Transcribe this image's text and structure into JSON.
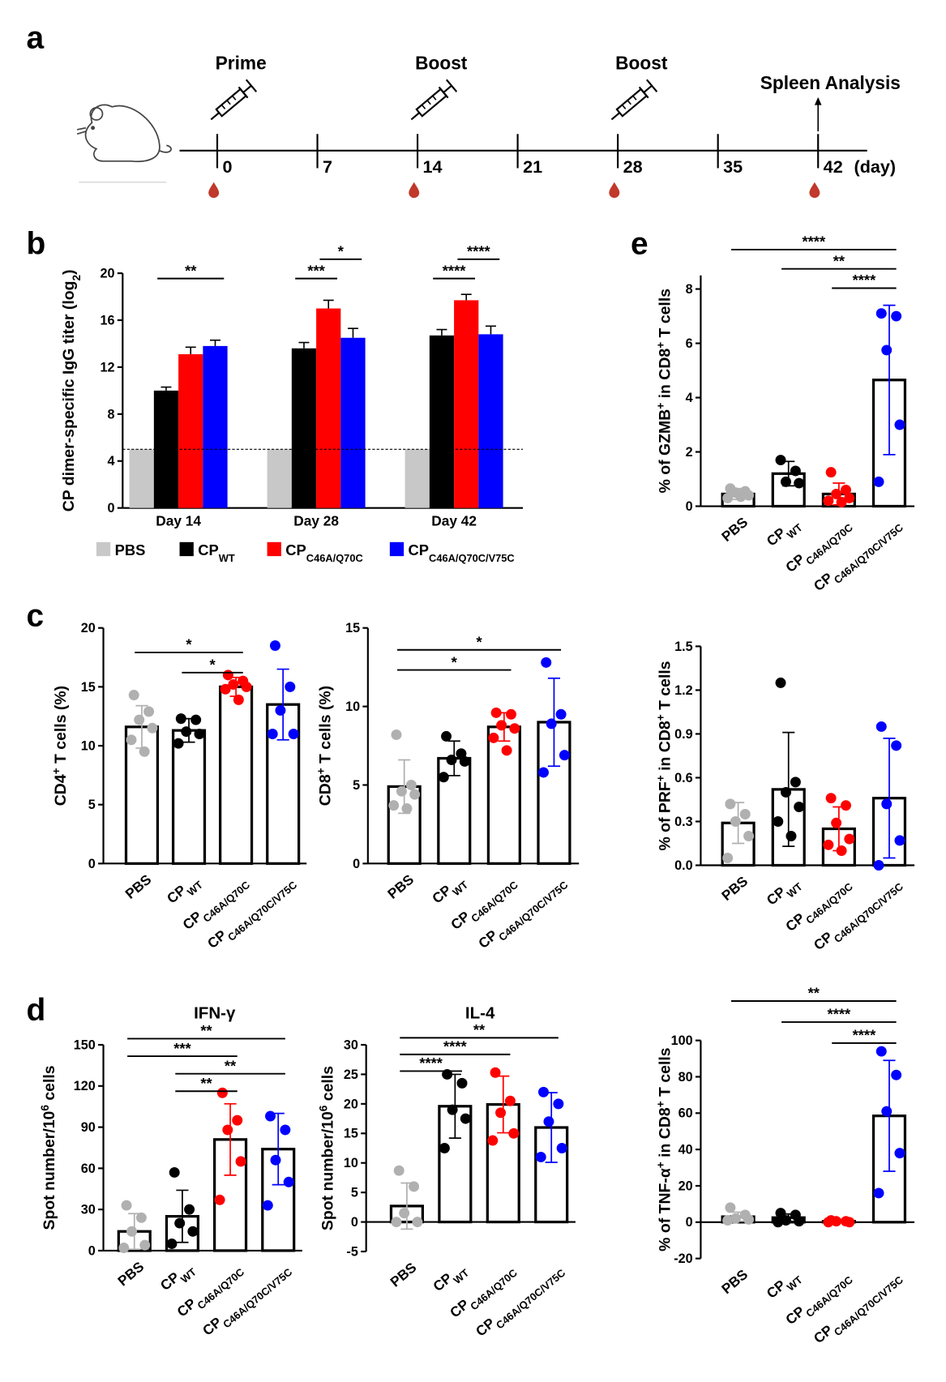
{
  "panel_labels": [
    "a",
    "b",
    "c",
    "d",
    "e"
  ],
  "timeline": {
    "days": [
      0,
      7,
      14,
      21,
      28,
      35,
      42
    ],
    "unit": "(day)",
    "events": [
      {
        "day": 0,
        "label": "Prime"
      },
      {
        "day": 14,
        "label": "Boost"
      },
      {
        "day": 28,
        "label": "Boost"
      },
      {
        "day": 42,
        "label": "Spleen Analysis"
      }
    ],
    "bleeds": [
      0,
      14,
      28,
      42
    ]
  },
  "chart_data": [
    {
      "type": "grouped_bar",
      "ylabel": [
        "CP dimer-specific IgG titer (log",
        {
          "sub": "2"
        },
        ")"
      ],
      "categories": [
        "Day 14",
        "Day 28",
        "Day 42"
      ],
      "ylim": [
        0,
        20
      ],
      "yticks": [
        0,
        4,
        8,
        12,
        16,
        20
      ],
      "threshold": 5,
      "series": [
        {
          "name": "PBS",
          "color": "#c8c8c8",
          "values": [
            5,
            5,
            5
          ]
        },
        {
          "name": "CP",
          "sub": "WT",
          "color": "#000000",
          "values": [
            10,
            13.6,
            14.7
          ],
          "errors": [
            0.3,
            0.5,
            0.5
          ]
        },
        {
          "name": "CP",
          "sub": "C46A/Q70C",
          "color": "#ff0000",
          "values": [
            13.1,
            17,
            17.7
          ],
          "errors": [
            0.6,
            0.7,
            0.5
          ]
        },
        {
          "name": "CP",
          "sub": "C46A/Q70C/V75C",
          "color": "#0000ff",
          "values": [
            13.8,
            14.5,
            14.8
          ],
          "errors": [
            0.5,
            0.8,
            0.7
          ]
        }
      ],
      "significance": [
        {
          "category": 0,
          "series": [
            1,
            3
          ],
          "label": "**"
        },
        {
          "category": 1,
          "series": [
            1,
            2
          ],
          "label": "***"
        },
        {
          "category": 1,
          "series": [
            2,
            3
          ],
          "label": "*"
        },
        {
          "category": 2,
          "series": [
            1,
            2
          ],
          "label": "****"
        },
        {
          "category": 2,
          "series": [
            2,
            3
          ],
          "label": "****"
        }
      ]
    },
    {
      "type": "dot_bar",
      "ylabel": [
        "CD4",
        {
          "sup": "+"
        },
        " T cells (%)"
      ],
      "ylim": [
        0,
        20
      ],
      "yticks": [
        0,
        5,
        10,
        15,
        20
      ],
      "categories": [
        {
          "text": "PBS"
        },
        {
          "text": "CP",
          "sub": "WT"
        },
        {
          "text": "CP",
          "sub": "C46A/Q70C"
        },
        {
          "text": "CP",
          "sub": "C46A/Q70C/V75C"
        }
      ],
      "colors": [
        "#b0b0b0",
        "#000000",
        "#ff0000",
        "#0000ff"
      ],
      "means": [
        11.6,
        11.3,
        15,
        13.5
      ],
      "sd": [
        1.8,
        1,
        0.8,
        3
      ],
      "points": [
        [
          14.3,
          12.9,
          12.2,
          11.5,
          10.5,
          9.5
        ],
        [
          12.3,
          12.2,
          11.2,
          11,
          10.2
        ],
        [
          16,
          15.5,
          15.2,
          15,
          14.8,
          13.9
        ],
        [
          18.5,
          15,
          13,
          11,
          11
        ]
      ],
      "significance": [
        {
          "groups": [
            0,
            2
          ],
          "label": "*"
        },
        {
          "groups": [
            1,
            2
          ],
          "label": "*"
        }
      ]
    },
    {
      "type": "dot_bar",
      "ylabel": [
        "CD8",
        {
          "sup": "+"
        },
        " T cells (%)"
      ],
      "ylim": [
        0,
        15
      ],
      "yticks": [
        0,
        5,
        10,
        15
      ],
      "categories": [
        {
          "text": "PBS"
        },
        {
          "text": "CP",
          "sub": "WT"
        },
        {
          "text": "CP",
          "sub": "C46A/Q70C"
        },
        {
          "text": "CP",
          "sub": "C46A/Q70C/V75C"
        }
      ],
      "colors": [
        "#b0b0b0",
        "#000000",
        "#ff0000",
        "#0000ff"
      ],
      "means": [
        4.9,
        6.7,
        8.7,
        9
      ],
      "sd": [
        1.7,
        1.1,
        0.9,
        2.8
      ],
      "points": [
        [
          8.2,
          5,
          4.6,
          4.4,
          3.7,
          3.5
        ],
        [
          8.1,
          7,
          6.6,
          6.5,
          5.5
        ],
        [
          9.6,
          9.5,
          8.8,
          8.6,
          8,
          7.2
        ],
        [
          12.8,
          9.5,
          8.9,
          6.9,
          5.8
        ]
      ],
      "significance": [
        {
          "groups": [
            0,
            3
          ],
          "label": "*"
        },
        {
          "groups": [
            0,
            2
          ],
          "label": "*"
        }
      ]
    },
    {
      "type": "dot_bar",
      "title": "IFN-γ",
      "ylabel": [
        "Spot number/10",
        {
          "sup": "6"
        },
        " cells"
      ],
      "ylim": [
        0,
        150
      ],
      "yticks": [
        0,
        30,
        60,
        90,
        120,
        150
      ],
      "categories": [
        {
          "text": "PBS"
        },
        {
          "text": "CP",
          "sub": "WT"
        },
        {
          "text": "CP",
          "sub": "C46A/Q70C"
        },
        {
          "text": "CP",
          "sub": "C46A/Q70C/V75C"
        }
      ],
      "colors": [
        "#b0b0b0",
        "#000000",
        "#ff0000",
        "#0000ff"
      ],
      "means": [
        14,
        25,
        81,
        74
      ],
      "sd": [
        13,
        19,
        26,
        26
      ],
      "points": [
        [
          33,
          24,
          14,
          4,
          2
        ],
        [
          57,
          30,
          20,
          14,
          5
        ],
        [
          115,
          95,
          88,
          65,
          37
        ],
        [
          98,
          88,
          66,
          50,
          33
        ]
      ],
      "significance": [
        {
          "groups": [
            0,
            3
          ],
          "label": "**"
        },
        {
          "groups": [
            0,
            2
          ],
          "label": "***"
        },
        {
          "groups": [
            1,
            3
          ],
          "label": "**"
        },
        {
          "groups": [
            1,
            2
          ],
          "label": "**"
        }
      ]
    },
    {
      "type": "dot_bar",
      "title": "IL-4",
      "ylabel": [
        "Spot number/10",
        {
          "sup": "6"
        },
        " cells"
      ],
      "ylim": [
        -5,
        30
      ],
      "yticks": [
        -5,
        0,
        5,
        10,
        15,
        20,
        25,
        30
      ],
      "categories": [
        {
          "text": "PBS"
        },
        {
          "text": "CP",
          "sub": "WT"
        },
        {
          "text": "CP",
          "sub": "C46A/Q70C"
        },
        {
          "text": "CP",
          "sub": "C46A/Q70C/V75C"
        }
      ],
      "colors": [
        "#b0b0b0",
        "#000000",
        "#ff0000",
        "#0000ff"
      ],
      "means": [
        2.7,
        19.6,
        19.9,
        16
      ],
      "sd": [
        3.9,
        5.4,
        4.8,
        5.9
      ],
      "points": [
        [
          8.7,
          6,
          1.5,
          0,
          0
        ],
        [
          25,
          23.5,
          19,
          17.5,
          12.5
        ],
        [
          25.3,
          20.5,
          18.5,
          15,
          13.8
        ],
        [
          22,
          20,
          17,
          12.5,
          11
        ]
      ],
      "significance": [
        {
          "groups": [
            0,
            3
          ],
          "label": "**"
        },
        {
          "groups": [
            0,
            2
          ],
          "label": "****"
        },
        {
          "groups": [
            0,
            1
          ],
          "label": "****"
        }
      ]
    },
    {
      "type": "dot_bar",
      "ylabel": [
        "% of GZMB",
        {
          "sup": "+"
        },
        " in CD8",
        {
          "sup": "+"
        },
        " T cells"
      ],
      "ylim": [
        0,
        8.5
      ],
      "yticks": [
        0,
        2,
        4,
        6,
        8
      ],
      "categories": [
        {
          "text": "PBS"
        },
        {
          "text": "CP",
          "sub": "WT"
        },
        {
          "text": "CP",
          "sub": "C46A/Q70C"
        },
        {
          "text": "CP",
          "sub": "C46A/Q70C/V75C"
        }
      ],
      "colors": [
        "#b0b0b0",
        "#000000",
        "#ff0000",
        "#0000ff"
      ],
      "means": [
        0.45,
        1.2,
        0.45,
        4.65
      ],
      "sd": [
        0.2,
        0.45,
        0.4,
        2.75
      ],
      "points": [
        [
          0.65,
          0.55,
          0.5,
          0.4,
          0.3,
          0.35
        ],
        [
          1.7,
          1.3,
          0.9,
          0.85
        ],
        [
          1.25,
          0.6,
          0.45,
          0.3,
          0.2,
          0.15
        ],
        [
          7.1,
          7,
          5.75,
          3,
          0.9
        ]
      ],
      "significance": [
        {
          "groups": [
            0,
            3
          ],
          "label": "****"
        },
        {
          "groups": [
            1,
            3
          ],
          "label": "**"
        },
        {
          "groups": [
            2,
            3
          ],
          "label": "****"
        }
      ]
    },
    {
      "type": "dot_bar",
      "ylabel": [
        "% of PRF",
        {
          "sup": "+"
        },
        " in CD8",
        {
          "sup": "+"
        },
        " T cells"
      ],
      "ylim": [
        0,
        1.5
      ],
      "yticks": [
        {
          "value": 0,
          "label": "0.0"
        },
        0.3,
        0.6,
        0.9,
        1.2,
        1.5
      ],
      "categories": [
        {
          "text": "PBS"
        },
        {
          "text": "CP",
          "sub": "WT"
        },
        {
          "text": "CP",
          "sub": "C46A/Q70C"
        },
        {
          "text": "CP",
          "sub": "C46A/Q70C/V75C"
        }
      ],
      "colors": [
        "#b0b0b0",
        "#000000",
        "#ff0000",
        "#0000ff"
      ],
      "means": [
        0.29,
        0.52,
        0.25,
        0.46
      ],
      "sd": [
        0.14,
        0.39,
        0.15,
        0.41
      ],
      "points": [
        [
          0.42,
          0.35,
          0.3,
          0.2,
          0.05
        ],
        [
          1.25,
          0.57,
          0.5,
          0.4,
          0.3,
          0.2
        ],
        [
          0.46,
          0.41,
          0.29,
          0.18,
          0.14,
          0.1
        ],
        [
          0.95,
          0.82,
          0.42,
          0.17,
          0
        ]
      ]
    },
    {
      "type": "dot_bar",
      "ylabel": [
        "% of TNF-α",
        {
          "sup": "+"
        },
        " in CD8",
        {
          "sup": "+"
        },
        " T cells"
      ],
      "ylim": [
        -20,
        100
      ],
      "yticks": [
        -20,
        0,
        20,
        40,
        60,
        80,
        100
      ],
      "categories": [
        {
          "text": "PBS"
        },
        {
          "text": "CP",
          "sub": "WT"
        },
        {
          "text": "CP",
          "sub": "C46A/Q70C"
        },
        {
          "text": "CP",
          "sub": "C46A/Q70C/V75C"
        }
      ],
      "colors": [
        "#b0b0b0",
        "#000000",
        "#ff0000",
        "#0000ff"
      ],
      "means": [
        3,
        2.5,
        0.5,
        58.5
      ],
      "sd": [
        2.5,
        2,
        0.5,
        30.5
      ],
      "points": [
        [
          8,
          4,
          2,
          1.5,
          1
        ],
        [
          5,
          4,
          1,
          0.5,
          0
        ],
        [
          1,
          0.5,
          0.5,
          0,
          0
        ],
        [
          94,
          81,
          61,
          38,
          16
        ]
      ],
      "significance": [
        {
          "groups": [
            0,
            3
          ],
          "label": "**"
        },
        {
          "groups": [
            1,
            3
          ],
          "label": "****"
        },
        {
          "groups": [
            2,
            3
          ],
          "label": "****"
        }
      ]
    }
  ]
}
